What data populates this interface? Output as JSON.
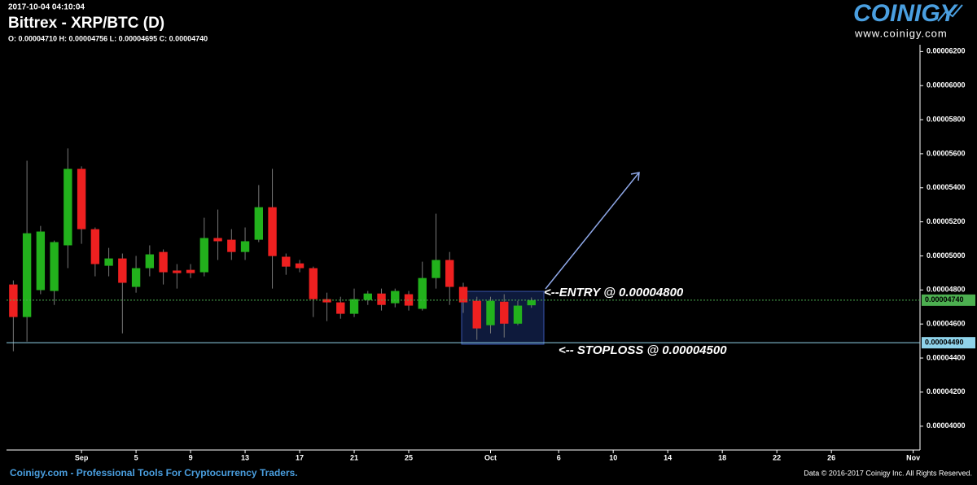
{
  "chart_data": {
    "type": "candlestick",
    "timestamp": "2017-10-04 04:10:04",
    "title": "Bittrex - XRP/BTC (D)",
    "ohlc_text": "O: 0.00004710 H: 0.00004756 L: 0.00004695 C: 0.00004740",
    "logo": "COINIGY",
    "logo_url": "www.coinigy.com",
    "footer_left": "Coinigy.com - Professional Tools For Cryptocurrency Traders.",
    "footer_right": "Data © 2016-2017 Coinigy Inc. All Rights Reserved.",
    "categories": [
      null,
      null,
      null,
      null,
      null,
      null,
      null,
      null,
      null,
      null,
      null,
      null,
      null,
      null,
      null,
      null,
      null,
      null,
      null,
      null,
      null,
      null,
      null,
      null,
      null,
      null,
      null,
      null,
      null,
      null,
      null,
      null,
      null,
      null,
      null,
      null,
      null,
      null,
      null
    ],
    "open": [
      4.832e-05,
      4.641e-05,
      4.799e-05,
      4.794e-05,
      5.062e-05,
      5.511e-05,
      5.157e-05,
      4.942e-05,
      4.985e-05,
      4.818e-05,
      4.928e-05,
      5.023e-05,
      4.914e-05,
      4.918e-05,
      4.904e-05,
      5.105e-05,
      5.095e-05,
      5.023e-05,
      5.095e-05,
      5.286e-05,
      4.995e-05,
      4.956e-05,
      4.928e-05,
      4.746e-05,
      4.727e-05,
      4.66e-05,
      4.741e-05,
      4.779e-05,
      4.722e-05,
      4.775e-05,
      4.689e-05,
      4.87e-05,
      4.976e-05,
      4.818e-05,
      4.736e-05,
      4.593e-05,
      4.731e-05,
      4.602e-05,
      4.71e-05
    ],
    "high": [
      4.856e-05,
      5.559e-05,
      5.176e-05,
      5.09e-05,
      5.631e-05,
      5.526e-05,
      5.167e-05,
      5.047e-05,
      5.014e-05,
      5e-05,
      5.062e-05,
      5.038e-05,
      4.952e-05,
      4.952e-05,
      5.224e-05,
      5.272e-05,
      5.157e-05,
      5.167e-05,
      5.416e-05,
      5.511e-05,
      5.014e-05,
      4.976e-05,
      4.937e-05,
      4.784e-05,
      4.76e-05,
      4.808e-05,
      4.794e-05,
      4.808e-05,
      4.808e-05,
      4.794e-05,
      4.966e-05,
      5.248e-05,
      5.023e-05,
      4.842e-05,
      4.76e-05,
      4.76e-05,
      4.775e-05,
      4.736e-05,
      4.756e-05
    ],
    "low": [
      4.44e-05,
      4.497e-05,
      4.775e-05,
      4.712e-05,
      4.928e-05,
      5.071e-05,
      4.88e-05,
      4.88e-05,
      4.545e-05,
      4.784e-05,
      4.88e-05,
      4.832e-05,
      4.808e-05,
      4.87e-05,
      4.88e-05,
      4.976e-05,
      4.976e-05,
      4.976e-05,
      5.081e-05,
      4.808e-05,
      4.889e-05,
      4.904e-05,
      4.641e-05,
      4.617e-05,
      4.631e-05,
      4.641e-05,
      4.712e-05,
      4.679e-05,
      4.698e-05,
      4.679e-05,
      4.679e-05,
      4.808e-05,
      4.712e-05,
      4.665e-05,
      4.507e-05,
      4.545e-05,
      4.521e-05,
      4.593e-05,
      4.695e-05
    ],
    "close": [
      4.641e-05,
      5.133e-05,
      5.143e-05,
      5.081e-05,
      5.511e-05,
      5.157e-05,
      4.952e-05,
      4.985e-05,
      4.842e-05,
      4.928e-05,
      5.009e-05,
      4.904e-05,
      4.899e-05,
      4.899e-05,
      5.105e-05,
      5.086e-05,
      5.023e-05,
      5.086e-05,
      5.286e-05,
      4.999e-05,
      4.937e-05,
      4.928e-05,
      4.746e-05,
      4.727e-05,
      4.66e-05,
      4.746e-05,
      4.779e-05,
      4.712e-05,
      4.794e-05,
      4.708e-05,
      4.87e-05,
      4.976e-05,
      4.818e-05,
      4.727e-05,
      4.574e-05,
      4.736e-05,
      4.602e-05,
      4.708e-05,
      4.74e-05
    ],
    "up_color": "#22b11c",
    "down_color": "#ee2020",
    "xlim": [
      -0.5,
      66.5
    ],
    "xticks": [
      {
        "value": 5,
        "label": "Sep"
      },
      {
        "value": 9,
        "label": "5"
      },
      {
        "value": 13,
        "label": "9"
      },
      {
        "value": 17,
        "label": "13"
      },
      {
        "value": 21,
        "label": "17"
      },
      {
        "value": 25,
        "label": "21"
      },
      {
        "value": 29,
        "label": "25"
      },
      {
        "value": 35,
        "label": "Oct"
      },
      {
        "value": 40,
        "label": "6"
      },
      {
        "value": 44,
        "label": "10"
      },
      {
        "value": 48,
        "label": "14"
      },
      {
        "value": 52,
        "label": "18"
      },
      {
        "value": 56,
        "label": "22"
      },
      {
        "value": 60,
        "label": "26"
      },
      {
        "value": 66,
        "label": "Nov"
      }
    ],
    "ylim": [
      3.86e-05,
      6.24e-05
    ],
    "yticks": [
      {
        "value": 4e-05,
        "label": "0.00004000"
      },
      {
        "value": 4.2e-05,
        "label": "0.00004200"
      },
      {
        "value": 4.4e-05,
        "label": "0.00004400"
      },
      {
        "value": 4.6e-05,
        "label": "0.00004600"
      },
      {
        "value": 4.8e-05,
        "label": "0.00004800"
      },
      {
        "value": 5e-05,
        "label": "0.00005000"
      },
      {
        "value": 5.2e-05,
        "label": "0.00005200"
      },
      {
        "value": 5.4e-05,
        "label": "0.00005400"
      },
      {
        "value": 5.6e-05,
        "label": "0.00005600"
      },
      {
        "value": 5.8e-05,
        "label": "0.00005800"
      },
      {
        "value": 6e-05,
        "label": "0.00006000"
      },
      {
        "value": 6.2e-05,
        "label": "0.00006200"
      }
    ],
    "price_lines": [
      {
        "value": 4.74e-05,
        "label": "0.00004740",
        "color": "#4caf50",
        "dashed": true
      },
      {
        "value": 4.49e-05,
        "label": "0.00004490",
        "color": "#8fd3ea",
        "dashed": false
      }
    ],
    "annotations": [
      "<--ENTRY @ 0.00004800",
      "<-- STOPLOSS @ 0.00004500"
    ]
  }
}
